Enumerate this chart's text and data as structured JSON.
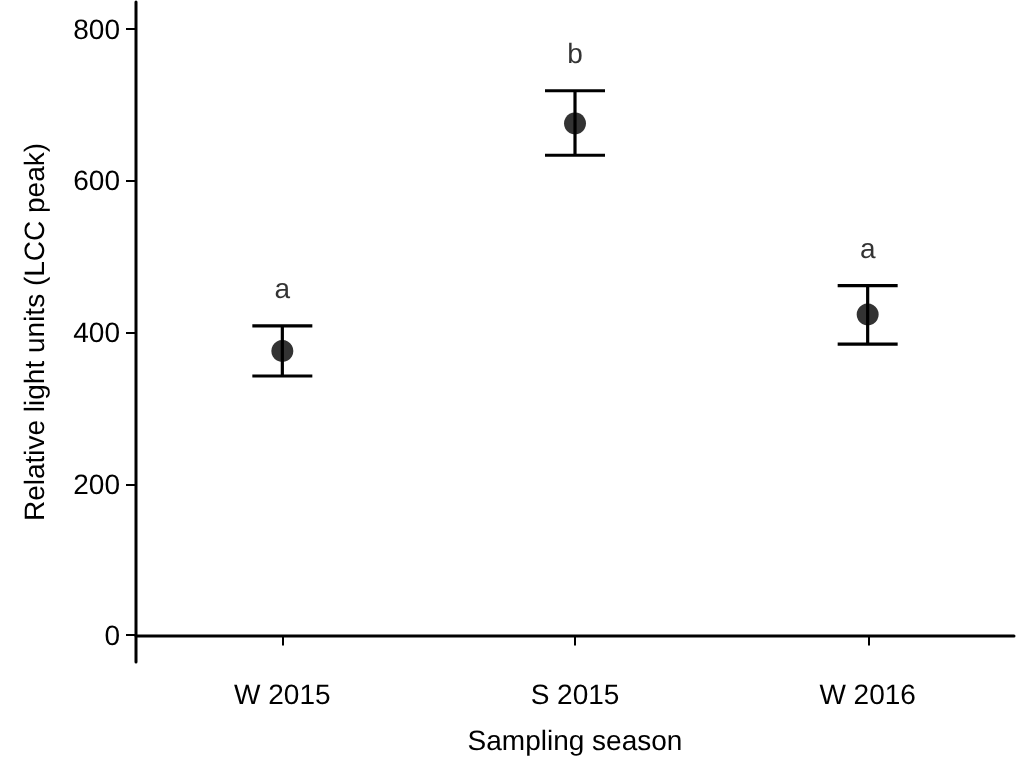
{
  "chart_data": {
    "type": "scatter",
    "xlabel": "Sampling season",
    "ylabel": "Relative light units (LCC peak)",
    "categories": [
      "W 2015",
      "S 2015",
      "W 2016"
    ],
    "values": [
      375,
      675,
      423
    ],
    "errors": [
      [
        342,
        408
      ],
      [
        633,
        718
      ],
      [
        384,
        461
      ]
    ],
    "color": "#000000",
    "marker": "circle",
    "ylim": [
      -35,
      835
    ],
    "yticks": [
      0,
      200,
      400,
      600,
      800
    ],
    "grid": false,
    "annotations": [
      "a",
      "b",
      "a"
    ]
  }
}
